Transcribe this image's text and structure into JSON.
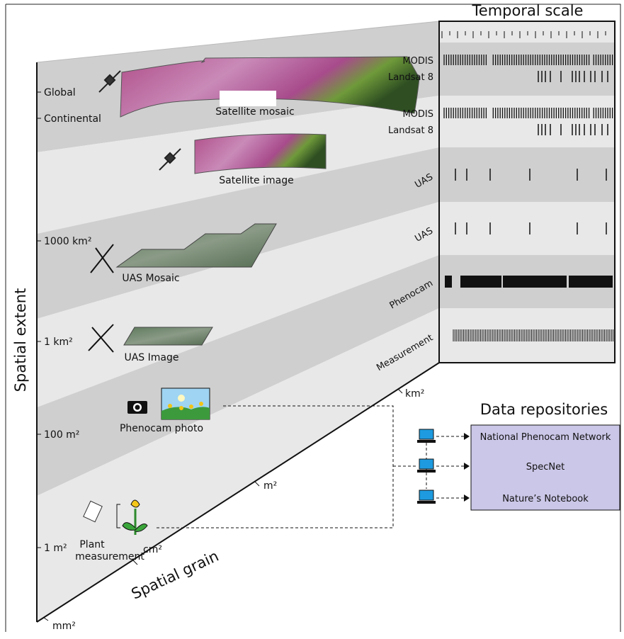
{
  "temporal_title": "Temporal scale",
  "spatial_extent": {
    "label": "Spatial extent",
    "ticks": [
      "Global",
      "Continental",
      "1000 km²",
      "1 km²",
      "100 m²",
      "1 m²"
    ]
  },
  "spatial_grain": {
    "label": "Spatial grain",
    "ticks": [
      "km²",
      "m²",
      "cm²",
      "mm²"
    ]
  },
  "datasets": [
    {
      "label": "Satellite mosaic"
    },
    {
      "label": "Satellite image"
    },
    {
      "label": "UAS Mosaic"
    },
    {
      "label": "UAS Image"
    },
    {
      "label": "Phenocam photo"
    },
    {
      "lines": [
        "Plant",
        "measurement"
      ]
    }
  ],
  "timelines": [
    "MODIS",
    "Landsat 8",
    "MODIS",
    "Landsat 8",
    "UAS",
    "UAS",
    "Phenocam",
    "Measurement"
  ],
  "repositories": {
    "title": "Data repositories",
    "items": [
      "National Phenocam Network",
      "SpecNet",
      "Nature’s Notebook"
    ]
  }
}
